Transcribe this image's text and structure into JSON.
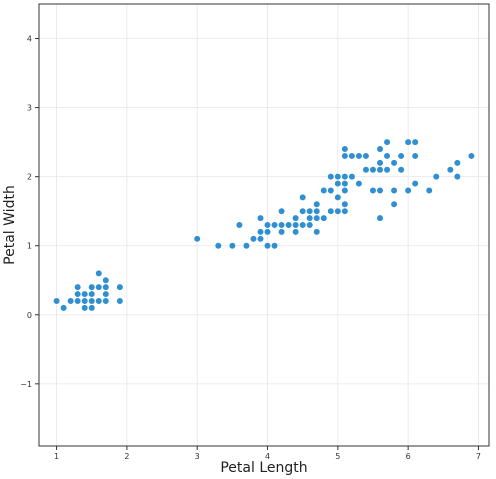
{
  "chart_data": {
    "type": "scatter",
    "title": "",
    "xlabel": "Petal Length",
    "ylabel": "Petal Width",
    "xlim": [
      0.75,
      7.15
    ],
    "ylim": [
      -1.9,
      4.5
    ],
    "xticks": [
      1,
      2,
      3,
      4,
      5,
      6,
      7
    ],
    "yticks": [
      -1,
      0,
      1,
      2,
      3,
      4
    ],
    "grid": true,
    "legend": "none",
    "colors": {
      "marker": "#2f8fd1",
      "marker_edge": "#ffffff"
    },
    "series": [
      {
        "points": [
          [
            1.0,
            0.2
          ],
          [
            1.1,
            0.1
          ],
          [
            1.2,
            0.2
          ],
          [
            1.3,
            0.2
          ],
          [
            1.3,
            0.3
          ],
          [
            1.3,
            0.4
          ],
          [
            1.4,
            0.1
          ],
          [
            1.4,
            0.2
          ],
          [
            1.4,
            0.3
          ],
          [
            1.5,
            0.1
          ],
          [
            1.5,
            0.2
          ],
          [
            1.5,
            0.3
          ],
          [
            1.5,
            0.4
          ],
          [
            1.6,
            0.2
          ],
          [
            1.6,
            0.4
          ],
          [
            1.6,
            0.6
          ],
          [
            1.7,
            0.2
          ],
          [
            1.7,
            0.3
          ],
          [
            1.7,
            0.4
          ],
          [
            1.7,
            0.5
          ],
          [
            1.9,
            0.2
          ],
          [
            1.9,
            0.4
          ],
          [
            3.0,
            1.1
          ],
          [
            3.3,
            1.0
          ],
          [
            3.5,
            1.0
          ],
          [
            3.6,
            1.3
          ],
          [
            3.7,
            1.0
          ],
          [
            3.8,
            1.1
          ],
          [
            3.9,
            1.1
          ],
          [
            3.9,
            1.2
          ],
          [
            3.9,
            1.4
          ],
          [
            4.0,
            1.0
          ],
          [
            4.0,
            1.2
          ],
          [
            4.0,
            1.3
          ],
          [
            4.1,
            1.0
          ],
          [
            4.1,
            1.3
          ],
          [
            4.2,
            1.2
          ],
          [
            4.2,
            1.3
          ],
          [
            4.2,
            1.5
          ],
          [
            4.3,
            1.3
          ],
          [
            4.4,
            1.2
          ],
          [
            4.4,
            1.3
          ],
          [
            4.4,
            1.4
          ],
          [
            4.5,
            1.3
          ],
          [
            4.5,
            1.5
          ],
          [
            4.5,
            1.7
          ],
          [
            4.6,
            1.3
          ],
          [
            4.6,
            1.4
          ],
          [
            4.6,
            1.5
          ],
          [
            4.7,
            1.2
          ],
          [
            4.7,
            1.4
          ],
          [
            4.7,
            1.5
          ],
          [
            4.7,
            1.6
          ],
          [
            4.8,
            1.4
          ],
          [
            4.8,
            1.8
          ],
          [
            4.9,
            1.5
          ],
          [
            4.9,
            1.8
          ],
          [
            4.9,
            2.0
          ],
          [
            5.0,
            1.5
          ],
          [
            5.0,
            1.7
          ],
          [
            5.0,
            1.9
          ],
          [
            5.0,
            2.0
          ],
          [
            5.1,
            1.5
          ],
          [
            5.1,
            1.6
          ],
          [
            5.1,
            1.8
          ],
          [
            5.1,
            1.9
          ],
          [
            5.1,
            2.0
          ],
          [
            5.1,
            2.3
          ],
          [
            5.1,
            2.4
          ],
          [
            5.2,
            2.0
          ],
          [
            5.2,
            2.3
          ],
          [
            5.3,
            1.9
          ],
          [
            5.3,
            2.3
          ],
          [
            5.4,
            2.1
          ],
          [
            5.4,
            2.3
          ],
          [
            5.5,
            1.8
          ],
          [
            5.5,
            2.1
          ],
          [
            5.6,
            1.4
          ],
          [
            5.6,
            1.8
          ],
          [
            5.6,
            2.1
          ],
          [
            5.6,
            2.2
          ],
          [
            5.6,
            2.4
          ],
          [
            5.7,
            2.1
          ],
          [
            5.7,
            2.3
          ],
          [
            5.7,
            2.5
          ],
          [
            5.8,
            1.6
          ],
          [
            5.8,
            1.8
          ],
          [
            5.8,
            2.2
          ],
          [
            5.9,
            2.1
          ],
          [
            5.9,
            2.3
          ],
          [
            6.0,
            1.8
          ],
          [
            6.0,
            2.5
          ],
          [
            6.1,
            1.9
          ],
          [
            6.1,
            2.3
          ],
          [
            6.1,
            2.5
          ],
          [
            6.3,
            1.8
          ],
          [
            6.4,
            2.0
          ],
          [
            6.6,
            2.1
          ],
          [
            6.7,
            2.0
          ],
          [
            6.7,
            2.2
          ],
          [
            6.9,
            2.3
          ]
        ]
      }
    ]
  }
}
